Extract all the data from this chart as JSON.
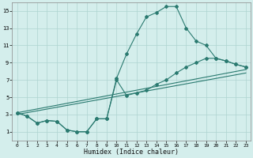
{
  "xlabel": "Humidex (Indice chaleur)",
  "bg_color": "#d4eeec",
  "grid_color": "#aed4d0",
  "line_color": "#2a7a70",
  "xlim": [
    -0.5,
    23.5
  ],
  "ylim": [
    0,
    16
  ],
  "xticks": [
    0,
    1,
    2,
    3,
    4,
    5,
    6,
    7,
    8,
    9,
    10,
    11,
    12,
    13,
    14,
    15,
    16,
    17,
    18,
    19,
    20,
    21,
    22,
    23
  ],
  "yticks": [
    1,
    3,
    5,
    7,
    9,
    11,
    13,
    15
  ],
  "upper_x": [
    0,
    1,
    2,
    3,
    4,
    5,
    6,
    7,
    8,
    9,
    10,
    11,
    12,
    13,
    14,
    15,
    16,
    17,
    18,
    19,
    20,
    21,
    22,
    23
  ],
  "upper_y": [
    3.2,
    2.8,
    2.0,
    2.3,
    2.2,
    1.2,
    1.0,
    1.0,
    2.5,
    2.5,
    7.2,
    10.0,
    12.3,
    14.3,
    14.8,
    15.5,
    15.5,
    13.0,
    11.5,
    11.0,
    9.5,
    9.2,
    8.8,
    8.5
  ],
  "lower_x": [
    0,
    1,
    2,
    3,
    4,
    5,
    6,
    7,
    8,
    9,
    10,
    11,
    12,
    13,
    14,
    15,
    16,
    17,
    18,
    19,
    20,
    21,
    22,
    23
  ],
  "lower_y": [
    3.2,
    2.8,
    2.0,
    2.3,
    2.2,
    1.2,
    1.0,
    1.0,
    2.5,
    2.5,
    7.0,
    5.2,
    5.5,
    5.8,
    6.5,
    7.0,
    7.8,
    8.5,
    9.0,
    9.5,
    9.5,
    9.2,
    8.8,
    8.5
  ],
  "trend1_x": [
    0,
    23
  ],
  "trend1_y": [
    3.2,
    8.2
  ],
  "trend2_x": [
    0,
    23
  ],
  "trend2_y": [
    3.0,
    7.8
  ]
}
